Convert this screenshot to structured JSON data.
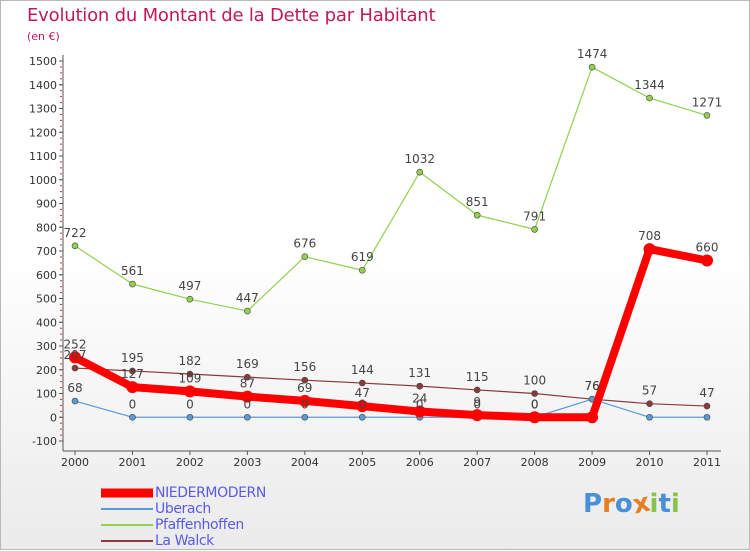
{
  "header": {
    "title": "Evolution du Montant de la Dette par Habitant",
    "unit": "(en €)"
  },
  "colors": {
    "title": "#c2185b",
    "axis": "#555555",
    "legend_text": "#5a5ae8"
  },
  "chart_data": {
    "type": "line",
    "title": "Evolution du Montant de la Dette par Habitant",
    "ylabel": "(en €)",
    "xlabel": "",
    "ylim": [
      -100,
      1500
    ],
    "yticks": [
      -100,
      0,
      100,
      200,
      300,
      400,
      500,
      600,
      700,
      800,
      900,
      1000,
      1100,
      1200,
      1300,
      1400,
      1500
    ],
    "categories": [
      "2000",
      "2001",
      "2002",
      "2003",
      "2004",
      "2005",
      "2006",
      "2007",
      "2008",
      "2009",
      "2010",
      "2011"
    ],
    "grid": false,
    "legend_position": "bottom-left",
    "series": [
      {
        "name": "NIEDERMODERN",
        "color": "#ff0000",
        "values": [
          252,
          127,
          109,
          87,
          69,
          47,
          24,
          9,
          0,
          0,
          708,
          660
        ],
        "labels": [
          "252",
          "127",
          "109",
          "87",
          "69",
          "47",
          "24",
          "9",
          "0",
          "",
          "708",
          "660"
        ]
      },
      {
        "name": "Uberach",
        "color": "#5b9bd5",
        "values": [
          68,
          0,
          0,
          0,
          0,
          0,
          0,
          0,
          0,
          76,
          0,
          0
        ],
        "labels": [
          "68",
          "0",
          "0",
          "0",
          "0",
          "0",
          "0",
          "0",
          "0",
          "76",
          "",
          ""
        ]
      },
      {
        "name": "Pfaffenhoffen",
        "color": "#92d050",
        "values": [
          722,
          561,
          497,
          447,
          676,
          619,
          1032,
          851,
          791,
          1474,
          1344,
          1271
        ],
        "labels": [
          "722",
          "561",
          "497",
          "447",
          "676",
          "619",
          "1032",
          "851",
          "791",
          "1474",
          "1344",
          "1271"
        ]
      },
      {
        "name": "La Walck",
        "color": "#8b3a3a",
        "values": [
          207,
          195,
          182,
          169,
          156,
          144,
          131,
          115,
          100,
          76,
          57,
          47
        ],
        "labels": [
          "207",
          "195",
          "182",
          "169",
          "156",
          "144",
          "131",
          "115",
          "100",
          "76",
          "57",
          "47"
        ]
      }
    ]
  },
  "legend": [
    {
      "label": "NIEDERMODERN"
    },
    {
      "label": "Uberach"
    },
    {
      "label": "Pfaffenhoffen"
    },
    {
      "label": "La Walck"
    }
  ],
  "logo": {
    "text": "Proxiti",
    "letters": [
      "P",
      "r",
      "o",
      "x",
      "i",
      "t",
      "i"
    ],
    "letter_colors": [
      "#4a90d9",
      "#e67e22",
      "#4a90d9",
      "#e67e22",
      "#8bc34a",
      "#4a90d9",
      "#8bc34a"
    ]
  }
}
